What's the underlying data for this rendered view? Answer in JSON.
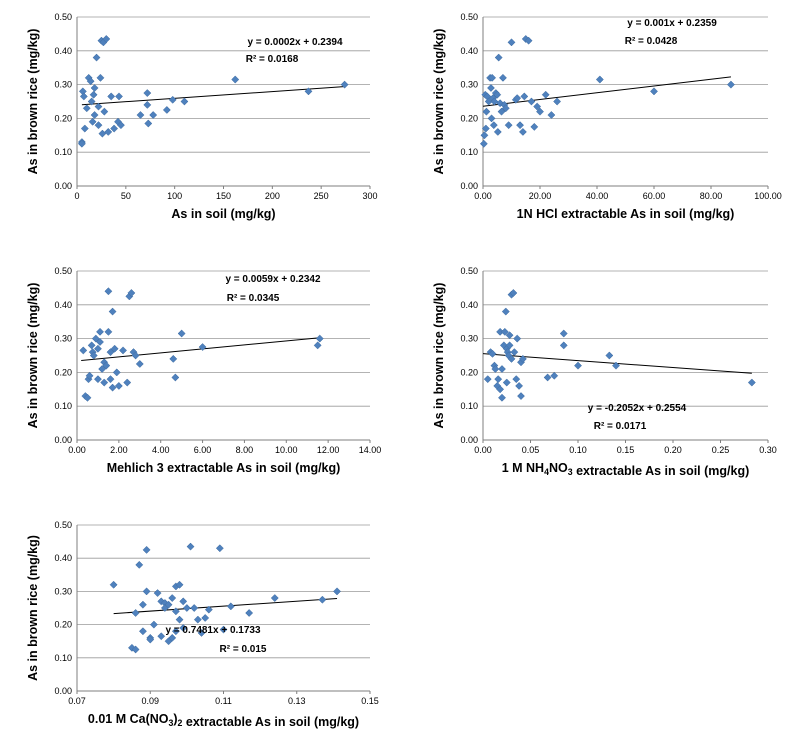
{
  "chart_data": [
    {
      "type": "scatter",
      "xlabel": "As in soil (mg/kg)",
      "ylabel": "As in brown rice (mg/kg)",
      "xlim": [
        0,
        300
      ],
      "ylim": [
        0,
        0.5
      ],
      "xticks": [
        "0",
        "50",
        "100",
        "150",
        "200",
        "250",
        "300"
      ],
      "yticks": [
        "0.00",
        "0.10",
        "0.20",
        "0.30",
        "0.40",
        "0.50"
      ],
      "equation": "y = 0.0002x + 0.2394",
      "r2": "R² = 0.0168",
      "trend": {
        "slope": 0.0002,
        "intercept": 0.2394,
        "x_range": [
          5,
          275
        ]
      },
      "x": [
        5,
        5,
        6,
        7,
        8,
        10,
        12,
        14,
        15,
        16,
        17,
        18,
        18,
        20,
        22,
        22,
        24,
        25,
        26,
        27,
        28,
        30,
        32,
        35,
        38,
        42,
        43,
        45,
        65,
        72,
        72,
        73,
        78,
        92,
        98,
        110,
        162,
        237,
        274
      ],
      "y": [
        0.13,
        0.125,
        0.28,
        0.265,
        0.17,
        0.23,
        0.32,
        0.31,
        0.25,
        0.19,
        0.27,
        0.21,
        0.29,
        0.38,
        0.235,
        0.18,
        0.32,
        0.43,
        0.155,
        0.425,
        0.22,
        0.435,
        0.16,
        0.265,
        0.17,
        0.19,
        0.265,
        0.18,
        0.21,
        0.24,
        0.275,
        0.185,
        0.21,
        0.225,
        0.255,
        0.25,
        0.315,
        0.28,
        0.3
      ]
    },
    {
      "type": "scatter",
      "xlabel": "1N HCl extractable As in soil (mg/kg)",
      "ylabel": "As in brown rice (mg/kg)",
      "xlim": [
        0,
        100
      ],
      "ylim": [
        0,
        0.5
      ],
      "xticks": [
        "0.00",
        "20.00",
        "40.00",
        "60.00",
        "80.00",
        "100.00"
      ],
      "yticks": [
        "0.00",
        "0.10",
        "0.20",
        "0.30",
        "0.40",
        "0.50"
      ],
      "equation": "y = 0.001x + 0.2359",
      "r2": "R² = 0.0428",
      "trend": {
        "slope": 0.001,
        "intercept": 0.2359,
        "x_range": [
          0,
          87
        ]
      },
      "x": [
        0.3,
        0.5,
        0.8,
        1.0,
        1.2,
        1.5,
        2.0,
        2.5,
        2.8,
        3.0,
        3.2,
        3.5,
        3.8,
        4.0,
        4.5,
        5.0,
        5.2,
        5.5,
        6.0,
        6.5,
        7.0,
        7.5,
        8.0,
        9.0,
        10.0,
        11.5,
        12.0,
        13.0,
        14.0,
        14.5,
        15.0,
        16.0,
        17.0,
        18.0,
        19.0,
        20.0,
        22.0,
        24.0,
        26.0,
        41.0,
        60.0,
        87.0
      ],
      "y": [
        0.125,
        0.15,
        0.27,
        0.17,
        0.22,
        0.265,
        0.25,
        0.32,
        0.29,
        0.2,
        0.32,
        0.26,
        0.18,
        0.25,
        0.275,
        0.27,
        0.16,
        0.38,
        0.245,
        0.22,
        0.32,
        0.24,
        0.23,
        0.18,
        0.425,
        0.255,
        0.26,
        0.18,
        0.16,
        0.265,
        0.435,
        0.43,
        0.25,
        0.175,
        0.235,
        0.22,
        0.27,
        0.21,
        0.25,
        0.315,
        0.28,
        0.3
      ]
    },
    {
      "type": "scatter",
      "xlabel": "Mehlich 3 extractable As in soil (mg/kg)",
      "ylabel": "As in brown rice (mg/kg)",
      "xlim": [
        0,
        14
      ],
      "ylim": [
        0,
        0.5
      ],
      "xticks": [
        "0.00",
        "2.00",
        "4.00",
        "6.00",
        "8.00",
        "10.00",
        "12.00",
        "14.00"
      ],
      "yticks": [
        "0.00",
        "0.10",
        "0.20",
        "0.30",
        "0.40",
        "0.50"
      ],
      "equation": "y = 0.0059x + 0.2342",
      "r2": "R² = 0.0345",
      "trend": {
        "slope": 0.0059,
        "intercept": 0.2342,
        "x_range": [
          0.2,
          11.6
        ]
      },
      "x": [
        0.3,
        0.4,
        0.5,
        0.55,
        0.6,
        0.7,
        0.75,
        0.8,
        0.9,
        1.0,
        1.0,
        1.1,
        1.1,
        1.2,
        1.3,
        1.3,
        1.4,
        1.5,
        1.5,
        1.6,
        1.6,
        1.7,
        1.7,
        1.8,
        1.9,
        2.0,
        2.2,
        2.4,
        2.5,
        2.6,
        2.7,
        2.8,
        3.0,
        4.6,
        4.7,
        5.0,
        6.0,
        11.5,
        11.6
      ],
      "y": [
        0.265,
        0.13,
        0.125,
        0.18,
        0.19,
        0.28,
        0.26,
        0.25,
        0.3,
        0.27,
        0.18,
        0.32,
        0.29,
        0.21,
        0.23,
        0.17,
        0.22,
        0.32,
        0.44,
        0.26,
        0.18,
        0.38,
        0.155,
        0.27,
        0.2,
        0.16,
        0.265,
        0.17,
        0.425,
        0.435,
        0.26,
        0.25,
        0.225,
        0.24,
        0.185,
        0.315,
        0.275,
        0.28,
        0.3
      ]
    },
    {
      "type": "scatter",
      "xlabel": "1 M NH4NO3 extractable As in soil (mg/kg)",
      "ylabel": "As in brown rice (mg/kg)",
      "xlim": [
        0,
        0.3
      ],
      "ylim": [
        0,
        0.5
      ],
      "xticks": [
        "0.00",
        "0.05",
        "0.10",
        "0.15",
        "0.20",
        "0.25",
        "0.30"
      ],
      "yticks": [
        "0.00",
        "0.10",
        "0.20",
        "0.30",
        "0.40",
        "0.50"
      ],
      "equation": "y = -0.2052x + 0.2554",
      "r2": "R² = 0.0171",
      "trend": {
        "slope": -0.2052,
        "intercept": 0.2554,
        "x_range": [
          0.0,
          0.283
        ]
      },
      "x": [
        0.005,
        0.008,
        0.01,
        0.012,
        0.013,
        0.015,
        0.016,
        0.018,
        0.018,
        0.02,
        0.02,
        0.022,
        0.023,
        0.024,
        0.025,
        0.025,
        0.026,
        0.027,
        0.028,
        0.028,
        0.03,
        0.03,
        0.032,
        0.033,
        0.035,
        0.036,
        0.038,
        0.04,
        0.04,
        0.042,
        0.068,
        0.075,
        0.085,
        0.085,
        0.1,
        0.133,
        0.14,
        0.283
      ],
      "y": [
        0.18,
        0.26,
        0.255,
        0.22,
        0.21,
        0.16,
        0.18,
        0.32,
        0.15,
        0.125,
        0.21,
        0.28,
        0.32,
        0.38,
        0.27,
        0.17,
        0.26,
        0.25,
        0.31,
        0.28,
        0.43,
        0.24,
        0.435,
        0.26,
        0.18,
        0.3,
        0.16,
        0.13,
        0.23,
        0.24,
        0.185,
        0.19,
        0.315,
        0.28,
        0.22,
        0.25,
        0.22,
        0.17
      ]
    },
    {
      "type": "scatter",
      "xlabel": "0.01 M Ca(NO3)2 extractable As in soil (mg/kg)",
      "ylabel": "As in brown rice (mg/kg)",
      "xlim": [
        0.07,
        0.15
      ],
      "ylim": [
        0,
        0.5
      ],
      "xticks": [
        "0.07",
        "0.09",
        "0.11",
        "0.13",
        "0.15"
      ],
      "yticks": [
        "0.00",
        "0.10",
        "0.20",
        "0.30",
        "0.40",
        "0.50"
      ],
      "equation": "y = 0.7481x + 0.1733",
      "r2": "R² = 0.015",
      "trend": {
        "slope": 0.7481,
        "intercept": 0.1733,
        "x_range": [
          0.08,
          0.141
        ]
      },
      "x": [
        0.08,
        0.085,
        0.086,
        0.086,
        0.087,
        0.088,
        0.088,
        0.089,
        0.089,
        0.09,
        0.09,
        0.091,
        0.092,
        0.093,
        0.093,
        0.094,
        0.094,
        0.095,
        0.095,
        0.096,
        0.096,
        0.097,
        0.097,
        0.097,
        0.098,
        0.098,
        0.099,
        0.099,
        0.1,
        0.101,
        0.102,
        0.103,
        0.104,
        0.105,
        0.106,
        0.109,
        0.11,
        0.112,
        0.117,
        0.124,
        0.137,
        0.141
      ],
      "y": [
        0.32,
        0.13,
        0.125,
        0.235,
        0.38,
        0.26,
        0.18,
        0.425,
        0.3,
        0.16,
        0.155,
        0.2,
        0.295,
        0.27,
        0.165,
        0.265,
        0.25,
        0.26,
        0.15,
        0.28,
        0.16,
        0.315,
        0.24,
        0.18,
        0.32,
        0.215,
        0.27,
        0.19,
        0.25,
        0.435,
        0.25,
        0.215,
        0.175,
        0.22,
        0.245,
        0.43,
        0.185,
        0.255,
        0.235,
        0.28,
        0.275,
        0.3
      ]
    }
  ]
}
